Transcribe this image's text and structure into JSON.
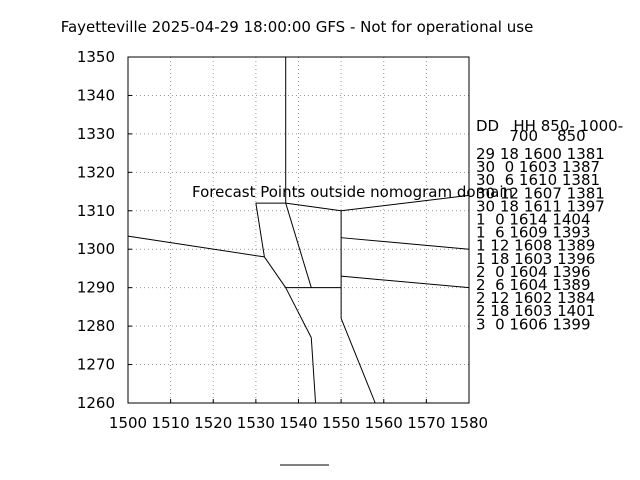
{
  "chart_data": {
    "type": "line",
    "title": "Fayetteville 2025-04-29 18:00:00 GFS - Not for operational use",
    "xlim": [
      1500,
      1580
    ],
    "ylim": [
      1260,
      1350
    ],
    "x_ticks": [
      1500,
      1510,
      1520,
      1530,
      1540,
      1550,
      1560,
      1570,
      1580
    ],
    "y_ticks": [
      1260,
      1270,
      1280,
      1290,
      1300,
      1310,
      1320,
      1330,
      1340,
      1350
    ],
    "grid": true,
    "colors": {
      "lines": "#000000",
      "grid": "#999999",
      "warning": "#ff0000"
    },
    "warning_text": "Forecast Points outside nomogram domain",
    "nomogram_lines": [
      [
        [
          1537,
          1350
        ],
        [
          1537,
          1312
        ]
      ],
      [
        [
          1530,
          1312
        ],
        [
          1537,
          1312
        ]
      ],
      [
        [
          1537,
          1312
        ],
        [
          1550,
          1310
        ]
      ],
      [
        [
          1550,
          1310
        ],
        [
          1580,
          1314
        ]
      ],
      [
        [
          1550,
          1310
        ],
        [
          1550,
          1282
        ]
      ],
      [
        [
          1530,
          1312
        ],
        [
          1532,
          1298
        ]
      ],
      [
        [
          1500,
          1303.4
        ],
        [
          1532,
          1298
        ]
      ],
      [
        [
          1532,
          1298
        ],
        [
          1537,
          1290
        ]
      ],
      [
        [
          1537,
          1312
        ],
        [
          1543,
          1290
        ]
      ],
      [
        [
          1537,
          1290
        ],
        [
          1550,
          1290
        ]
      ],
      [
        [
          1550,
          1303
        ],
        [
          1580,
          1300
        ]
      ],
      [
        [
          1550,
          1293
        ],
        [
          1580,
          1290
        ]
      ],
      [
        [
          1537,
          1290
        ],
        [
          1543,
          1277
        ]
      ],
      [
        [
          1543,
          1277
        ],
        [
          1544,
          1260
        ]
      ],
      [
        [
          1550,
          1282
        ],
        [
          1558,
          1260
        ]
      ]
    ],
    "table": {
      "header_line1": "DD   HH 850- 1000-",
      "header_line2": "       700    850",
      "rows": [
        "29 18 1600 1381",
        "30  0 1603 1387",
        "30  6 1610 1381",
        "30 12 1607 1381",
        "30 18 1611 1397",
        "1  0 1614 1404",
        "1  6 1609 1393",
        "1 12 1608 1389",
        "1 18 1603 1396",
        "2  0 1604 1396",
        "2  6 1604 1389",
        "2 12 1602 1384",
        "2 18 1603 1401",
        "3  0 1606 1399"
      ]
    }
  }
}
